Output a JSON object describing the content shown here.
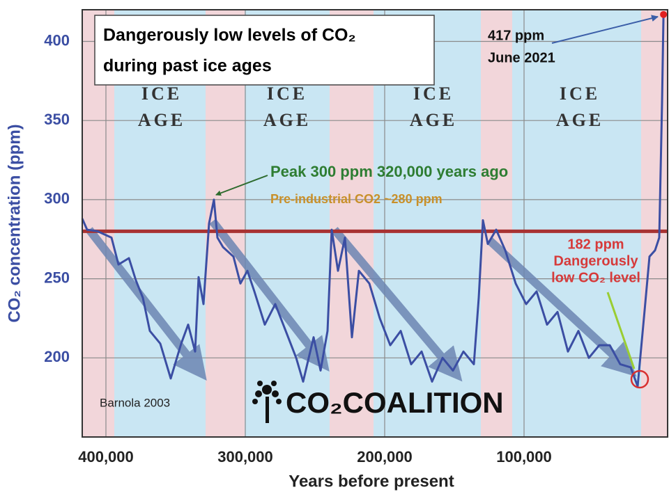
{
  "chart_data": {
    "type": "line",
    "title": [
      "Dangerously low levels of CO₂",
      "during past ice ages"
    ],
    "x_label": "Years before present",
    "y_label": "CO₂ concentration (ppm)",
    "color": "#3b4ea3",
    "endpoint_color": "#e02020",
    "x": [
      417000,
      413500,
      406000,
      396000,
      391000,
      383500,
      378500,
      373500,
      368500,
      361000,
      353500,
      346000,
      341000,
      336000,
      333500,
      330000,
      326000,
      322500,
      320000,
      316000,
      308500,
      303500,
      298500,
      293500,
      286000,
      278500,
      271000,
      263500,
      258500,
      251000,
      246000,
      241000,
      238000,
      233500,
      228500,
      223500,
      218500,
      211000,
      203500,
      196000,
      188500,
      181000,
      173500,
      166000,
      158500,
      151000,
      143500,
      136000,
      132500,
      129500,
      126000,
      120000,
      113500,
      106000,
      98500,
      91000,
      83500,
      76000,
      68500,
      61000,
      53500,
      46000,
      38500,
      31000,
      23500,
      18500,
      13500,
      10000,
      6000,
      3000,
      1000,
      -71
    ],
    "values": [
      288,
      281,
      280,
      276,
      259,
      263,
      249,
      238,
      217,
      209,
      187,
      209,
      221,
      204,
      251,
      234,
      285,
      300,
      276,
      270,
      264,
      247,
      255,
      242,
      221,
      234,
      217,
      200,
      185,
      213,
      192,
      217,
      281,
      255,
      276,
      213,
      255,
      247,
      225,
      208,
      217,
      196,
      204,
      185,
      200,
      192,
      204,
      196,
      238,
      287,
      272,
      281,
      268,
      247,
      234,
      242,
      221,
      229,
      204,
      217,
      200,
      208,
      208,
      196,
      194,
      182,
      230,
      264,
      268,
      276,
      361,
      417
    ],
    "xlim": [
      417000,
      -3000
    ],
    "ylim": [
      150,
      420
    ],
    "xticks": [
      {
        "value": 400000,
        "label": "400,000"
      },
      {
        "value": 300000,
        "label": "300,000"
      },
      {
        "value": 200000,
        "label": "200,000"
      },
      {
        "value": 100000,
        "label": "100,000"
      }
    ],
    "yticks": [
      200,
      250,
      300,
      350,
      400
    ],
    "grid": true,
    "reference_line": {
      "value": 280,
      "color": "#a83232",
      "label": "Pre-industrial CO2 ~280 ppm"
    },
    "annotations": {
      "ice_age": [
        [
          "ICE",
          "AGE"
        ],
        [
          "ICE",
          "AGE"
        ],
        [
          "ICE",
          "AGE"
        ],
        [
          "ICE",
          "AGE"
        ]
      ],
      "peak": "Peak 300 ppm 320,000 years ago",
      "low": [
        "182 ppm",
        "Dangerously",
        "low CO₂ level"
      ],
      "latest": [
        "417 ppm",
        "June 2021"
      ],
      "source": "Barnola 2003",
      "logo": "CO₂COALITION"
    }
  }
}
